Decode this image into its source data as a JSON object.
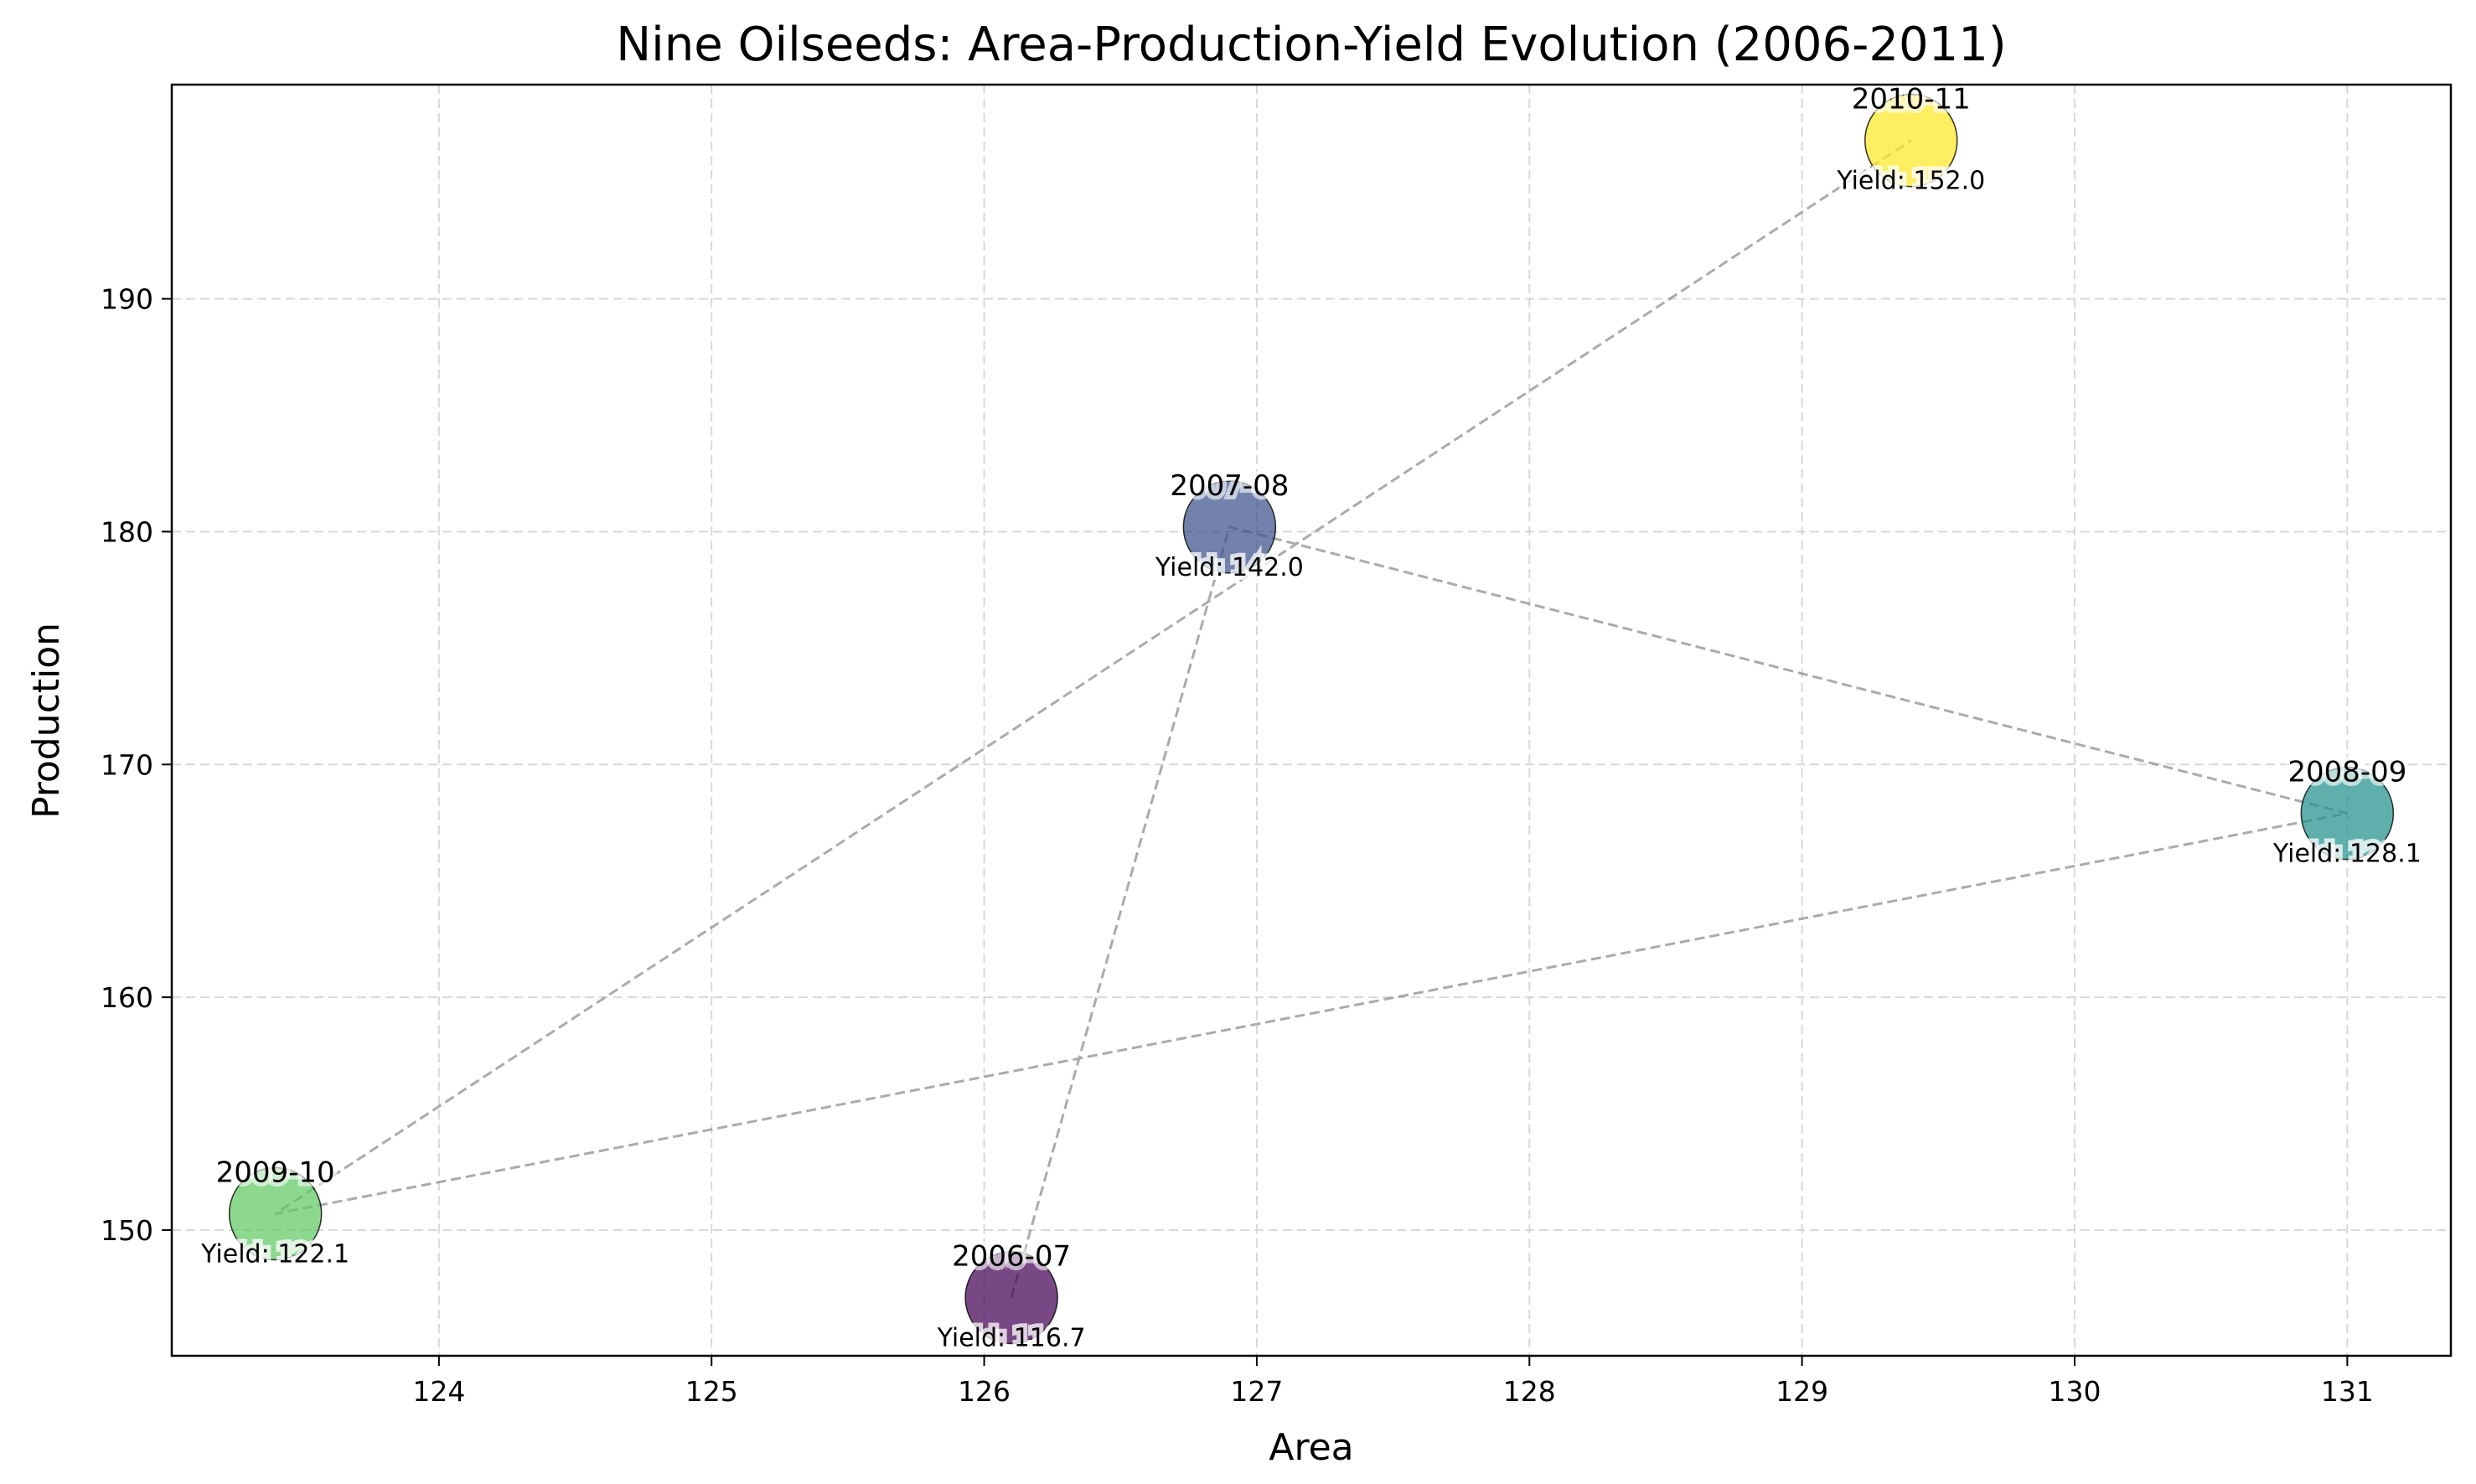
{
  "chart_data": {
    "type": "scatter",
    "title": "Nine Oilseeds: Area-Production-Yield Evolution (2006-2011)",
    "xlabel": "Area",
    "ylabel": "Production",
    "xlim": [
      123.02,
      131.38
    ],
    "ylim": [
      144.6,
      199.2
    ],
    "xticks": [
      124,
      125,
      126,
      127,
      128,
      129,
      130,
      131
    ],
    "yticks": [
      150,
      160,
      170,
      180,
      190
    ],
    "grid": true,
    "connector": "dashed line in chronological order",
    "points": [
      {
        "label": "2006-07",
        "area": 126.1,
        "production": 147.1,
        "yield_text": "Yield: 116.7",
        "color": "#440154"
      },
      {
        "label": "2007-08",
        "area": 126.9,
        "production": 180.2,
        "yield_text": "Yield: 142.0",
        "color": "#3b528b"
      },
      {
        "label": "2008-09",
        "area": 131.0,
        "production": 167.9,
        "yield_text": "Yield: 128.1",
        "color": "#21918c"
      },
      {
        "label": "2009-10",
        "area": 123.4,
        "production": 150.7,
        "yield_text": "Yield: 122.1",
        "color": "#5ec962"
      },
      {
        "label": "2010-11",
        "area": 129.4,
        "production": 196.8,
        "yield_text": "Yield: 152.0",
        "color": "#fde725"
      }
    ]
  }
}
